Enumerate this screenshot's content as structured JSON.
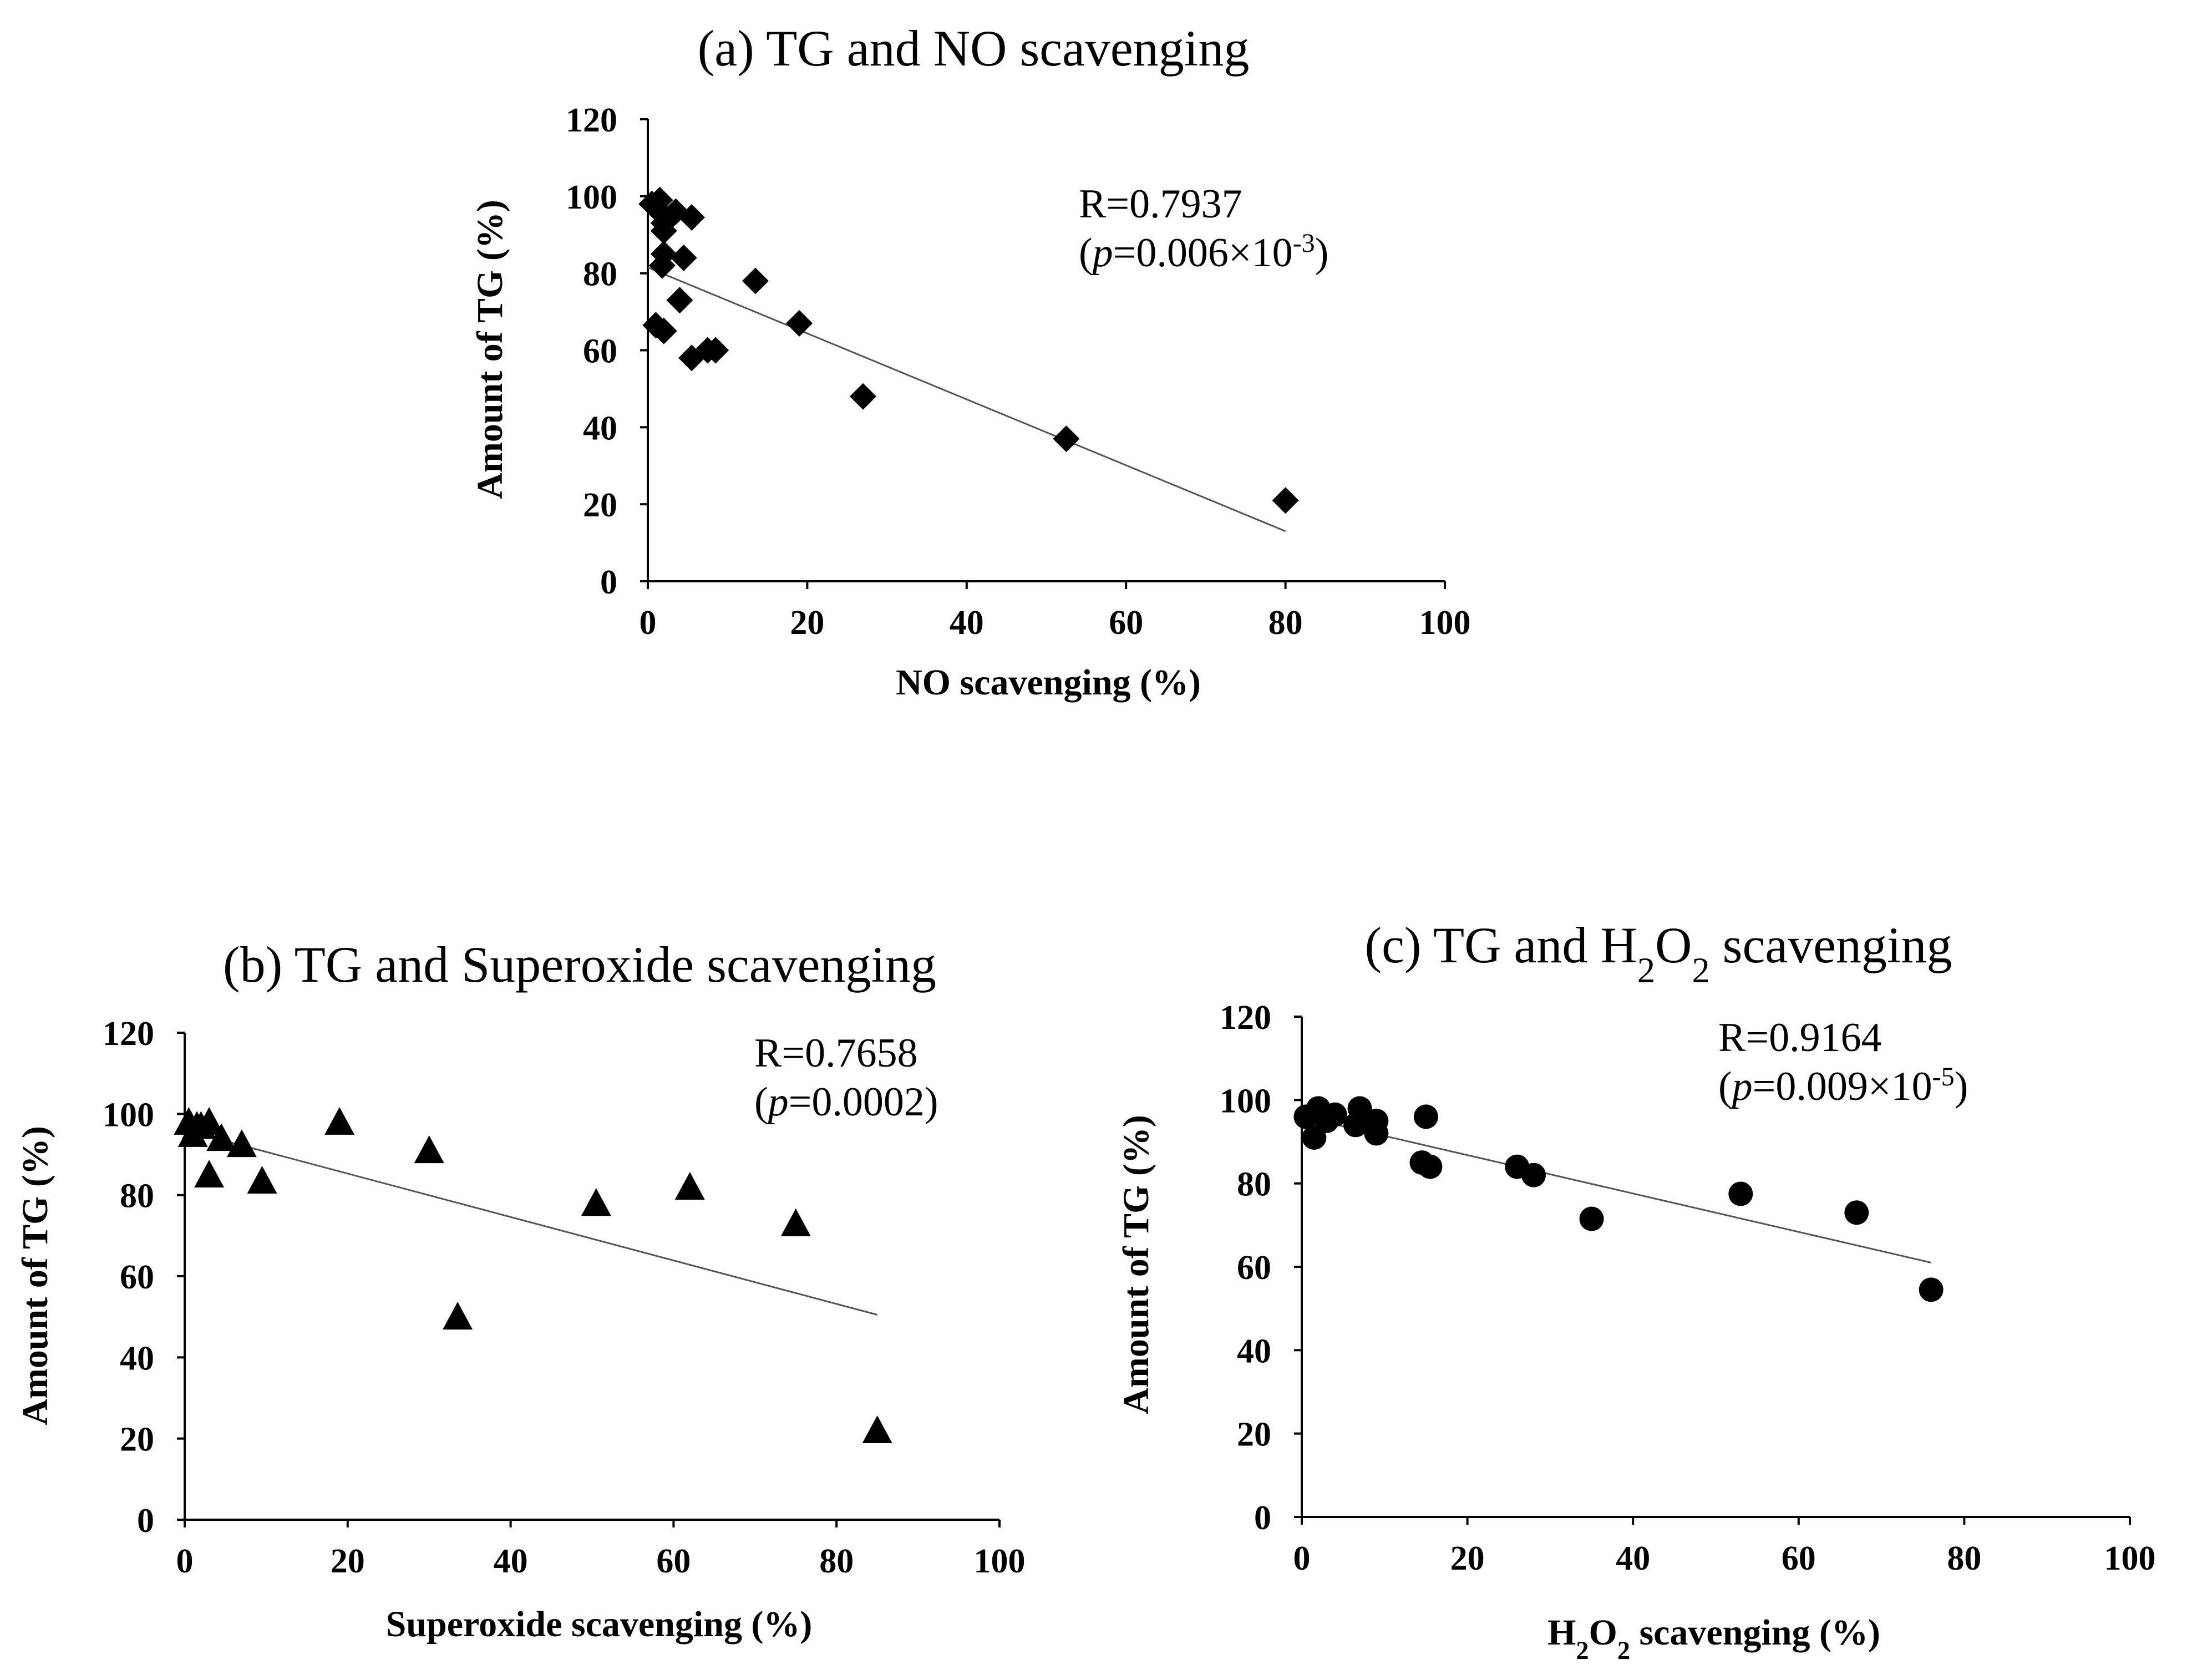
{
  "chart_data": [
    {
      "type": "scatter",
      "title": "(a) TG and NO scavenging",
      "xlabel": "NO scavenging (%)",
      "ylabel": "Amount of TG (%)",
      "xlim": [
        0,
        100
      ],
      "ylim": [
        0,
        120
      ],
      "xticks": [
        "0",
        "20",
        "40",
        "60",
        "80",
        "100"
      ],
      "yticks": [
        "0",
        "20",
        "40",
        "60",
        "80",
        "100",
        "120"
      ],
      "marker": "diamond",
      "annotation": {
        "r": "R=0.7937",
        "p_open": "(",
        "p_var": "p",
        "p_value": "=0.006×10",
        "p_exp": "-3",
        "p_close": ")"
      },
      "trendline": {
        "x": [
          0,
          80
        ],
        "y": [
          81.5,
          13
        ]
      },
      "grid": false,
      "points": [
        {
          "x": 0.5,
          "y": 98
        },
        {
          "x": 1.0,
          "y": 97
        },
        {
          "x": 1.5,
          "y": 99
        },
        {
          "x": 2.0,
          "y": 93
        },
        {
          "x": 3.5,
          "y": 96
        },
        {
          "x": 5.5,
          "y": 94.5
        },
        {
          "x": 2.0,
          "y": 91
        },
        {
          "x": 2.0,
          "y": 85
        },
        {
          "x": 1.8,
          "y": 82
        },
        {
          "x": 4.5,
          "y": 84
        },
        {
          "x": 4.0,
          "y": 73
        },
        {
          "x": 1.0,
          "y": 66.5
        },
        {
          "x": 2.0,
          "y": 65
        },
        {
          "x": 13.5,
          "y": 78
        },
        {
          "x": 19.0,
          "y": 67
        },
        {
          "x": 5.5,
          "y": 58
        },
        {
          "x": 7.5,
          "y": 60
        },
        {
          "x": 8.5,
          "y": 60
        },
        {
          "x": 27.0,
          "y": 48
        },
        {
          "x": 52.5,
          "y": 37
        },
        {
          "x": 80.0,
          "y": 21
        }
      ]
    },
    {
      "type": "scatter",
      "title": "(b) TG and Superoxide scavenging",
      "xlabel": "Superoxide scavenging (%)",
      "ylabel": "Amount of TG (%)",
      "xlim": [
        0,
        100
      ],
      "ylim": [
        0,
        120
      ],
      "xticks": [
        "0",
        "20",
        "40",
        "60",
        "80",
        "100"
      ],
      "yticks": [
        "0",
        "20",
        "40",
        "60",
        "80",
        "100",
        "120"
      ],
      "marker": "triangle",
      "annotation": {
        "r": "R=0.7658",
        "p_open": "(",
        "p_var": "p",
        "p_value": "=0.0002",
        "p_exp": "",
        "p_close": ")"
      },
      "trendline": {
        "x": [
          0,
          85
        ],
        "y": [
          96,
          50.5
        ]
      },
      "grid": false,
      "points": [
        {
          "x": 0.5,
          "y": 98
        },
        {
          "x": 1.0,
          "y": 95
        },
        {
          "x": 1.5,
          "y": 97
        },
        {
          "x": 2.0,
          "y": 97
        },
        {
          "x": 3.0,
          "y": 98
        },
        {
          "x": 4.5,
          "y": 94
        },
        {
          "x": 7.0,
          "y": 92.5
        },
        {
          "x": 3.0,
          "y": 85
        },
        {
          "x": 9.5,
          "y": 83.5
        },
        {
          "x": 19.0,
          "y": 98
        },
        {
          "x": 30.0,
          "y": 91
        },
        {
          "x": 33.5,
          "y": 50
        },
        {
          "x": 50.5,
          "y": 78
        },
        {
          "x": 62.0,
          "y": 82
        },
        {
          "x": 75.0,
          "y": 73
        },
        {
          "x": 85.0,
          "y": 22
        }
      ]
    },
    {
      "type": "scatter",
      "title": "(c) TG and H2O2 scavenging",
      "xlabel": "H2O2 scavenging (%)",
      "ylabel": "Amount of TG (%)",
      "xlim": [
        0,
        100
      ],
      "ylim": [
        0,
        120
      ],
      "xticks": [
        "0",
        "20",
        "40",
        "60",
        "80",
        "100"
      ],
      "yticks": [
        "0",
        "20",
        "40",
        "60",
        "80",
        "100",
        "120"
      ],
      "marker": "circle",
      "annotation": {
        "r": "R=0.9164",
        "p_open": "(",
        "p_var": "p",
        "p_value": "=0.009×10",
        "p_exp": "-5",
        "p_close": ")"
      },
      "trendline": {
        "x": [
          0,
          76
        ],
        "y": [
          96,
          61
        ]
      },
      "grid": false,
      "points": [
        {
          "x": 0.5,
          "y": 96
        },
        {
          "x": 1.5,
          "y": 91
        },
        {
          "x": 2.0,
          "y": 98
        },
        {
          "x": 3.0,
          "y": 95
        },
        {
          "x": 4.0,
          "y": 96.5
        },
        {
          "x": 6.5,
          "y": 94
        },
        {
          "x": 7.0,
          "y": 98
        },
        {
          "x": 9.0,
          "y": 92
        },
        {
          "x": 9.0,
          "y": 95
        },
        {
          "x": 14.5,
          "y": 85
        },
        {
          "x": 15.0,
          "y": 96
        },
        {
          "x": 15.5,
          "y": 84
        },
        {
          "x": 26.0,
          "y": 84
        },
        {
          "x": 28.0,
          "y": 82
        },
        {
          "x": 35.0,
          "y": 71.5
        },
        {
          "x": 53.0,
          "y": 77.5
        },
        {
          "x": 67.0,
          "y": 73
        },
        {
          "x": 76.0,
          "y": 54.5
        }
      ]
    }
  ]
}
